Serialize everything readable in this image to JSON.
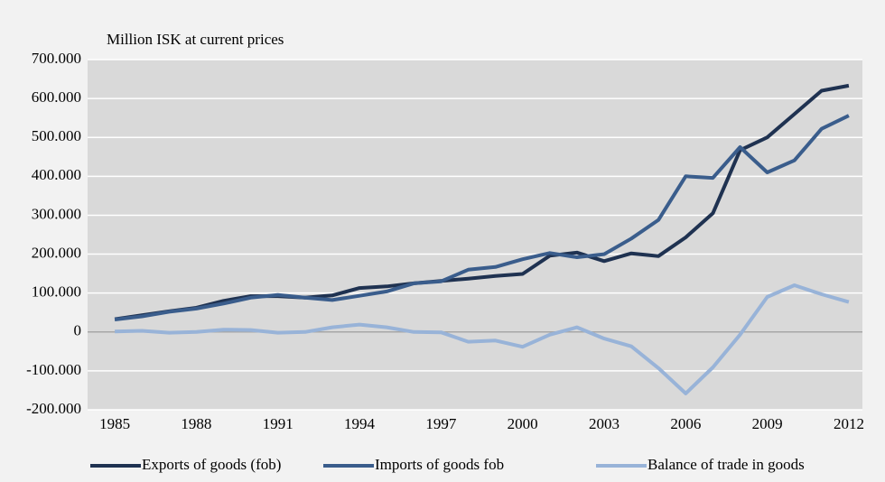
{
  "chart_data": {
    "type": "line",
    "y_axis_label": "Million ISK at current prices",
    "x": [
      1985,
      1986,
      1987,
      1988,
      1989,
      1990,
      1991,
      1992,
      1993,
      1994,
      1995,
      1996,
      1997,
      1998,
      1999,
      2000,
      2001,
      2002,
      2003,
      2004,
      2005,
      2006,
      2007,
      2008,
      2009,
      2010,
      2011,
      2012
    ],
    "series": [
      {
        "name": "Exports of goods (fob)",
        "color": "#1f3251",
        "values": [
          33000,
          43000,
          53000,
          62000,
          80000,
          92000,
          92000,
          88000,
          94000,
          113000,
          117000,
          125000,
          131000,
          137000,
          144000,
          149000,
          196000,
          204000,
          182000,
          202000,
          195000,
          243000,
          305000,
          467000,
          500000,
          560000,
          620000,
          633000
        ]
      },
      {
        "name": "Imports of goods fob",
        "color": "#3a5d8c",
        "values": [
          32000,
          40000,
          52000,
          60000,
          73000,
          88000,
          95000,
          88000,
          82000,
          93000,
          104000,
          125000,
          130000,
          160000,
          167000,
          187000,
          203000,
          192000,
          200000,
          240000,
          288000,
          400000,
          396000,
          475000,
          410000,
          441000,
          522000,
          556000
        ]
      },
      {
        "name": "Balance of trade in goods",
        "color": "#98b3d8",
        "values": [
          1000,
          3000,
          -2000,
          0,
          6000,
          5000,
          -2000,
          0,
          12000,
          19000,
          12000,
          0,
          -1000,
          -25000,
          -22000,
          -38000,
          -7000,
          12000,
          -17000,
          -37000,
          -93000,
          -158000,
          -91000,
          -7000,
          90000,
          120000,
          97000,
          77000
        ]
      }
    ],
    "xlim": [
      1984,
      2012.5
    ],
    "xticks": [
      1985,
      1988,
      1991,
      1994,
      1997,
      2000,
      2003,
      2006,
      2009,
      2012
    ],
    "ylim": [
      -200000,
      700000
    ],
    "yticks": [
      {
        "value": -200000,
        "label": "-200.000"
      },
      {
        "value": -100000,
        "label": "-100.000"
      },
      0,
      {
        "value": 100000,
        "label": "100.000"
      },
      {
        "value": 200000,
        "label": "200.000"
      },
      {
        "value": 300000,
        "label": "300.000"
      },
      {
        "value": 400000,
        "label": "400.000"
      },
      {
        "value": 500000,
        "label": "500.000"
      },
      {
        "value": 600000,
        "label": "600.000"
      },
      {
        "value": 700000,
        "label": "700.000"
      }
    ],
    "grid": true
  }
}
